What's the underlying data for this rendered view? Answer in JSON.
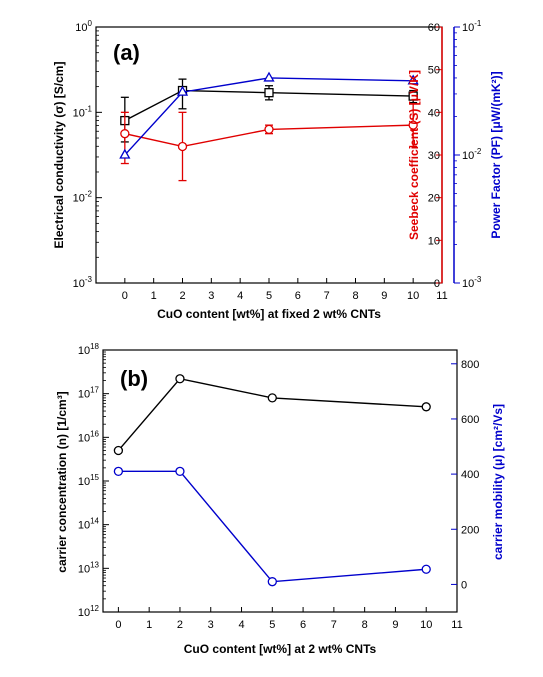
{
  "chart_data": [
    {
      "panel_label": "(a)",
      "type": "line",
      "x": [
        0,
        2,
        5,
        10
      ],
      "xlabel": "CuO content [wt%] at fixed 2 wt% CNTs",
      "xlim": [
        -1,
        11
      ],
      "xticks": [
        "0",
        "1",
        "2",
        "3",
        "4",
        "5",
        "6",
        "7",
        "8",
        "9",
        "10",
        "11"
      ],
      "y_left": {
        "label": "Electrical conductivity (σ) [S/cm]",
        "scale": "log",
        "range": [
          0.001,
          1
        ],
        "color": "#000000",
        "tick_exponents": [
          "-3",
          "-2",
          "-1",
          "0"
        ]
      },
      "y_right_1": {
        "label": "Seebeck coefficient (S) [μV/K]",
        "scale": "linear",
        "range": [
          0,
          60
        ],
        "color": "#e00000",
        "ticks": [
          "0",
          "10",
          "20",
          "30",
          "40",
          "50",
          "60"
        ]
      },
      "y_right_2": {
        "label": "Power Factor (PF) [μW/(mK²)]",
        "scale": "log",
        "range": [
          0.001,
          0.1
        ],
        "color": "#0000cc",
        "tick_exponents": [
          "-3",
          "-2",
          "-1"
        ]
      },
      "series": [
        {
          "axis": "left",
          "color": "#000000",
          "marker": "square",
          "values": [
            0.08,
            0.18,
            0.17,
            0.155
          ],
          "err_low": [
            0.045,
            0.11,
            0.14,
            0.13
          ],
          "err_high": [
            0.15,
            0.245,
            0.205,
            0.18
          ]
        },
        {
          "axis": "right_1",
          "color": "#e00000",
          "marker": "circle",
          "values": [
            35,
            32,
            36,
            37
          ],
          "err_low": [
            28,
            24,
            35,
            32
          ],
          "err_high": [
            40,
            40,
            37,
            42
          ]
        },
        {
          "axis": "right_2",
          "color": "#0000cc",
          "marker": "triangle",
          "values": [
            0.01,
            0.031,
            0.04,
            0.038
          ]
        }
      ]
    },
    {
      "panel_label": "(b)",
      "type": "line",
      "x": [
        0,
        2,
        5,
        10
      ],
      "xlabel": "CuO content [wt%] at 2 wt% CNTs",
      "xlim": [
        -0.5,
        11
      ],
      "xticks": [
        "0",
        "1",
        "2",
        "3",
        "4",
        "5",
        "6",
        "7",
        "8",
        "9",
        "10",
        "11"
      ],
      "y_left": {
        "label": "carrier concentration (n) [1/cm³]",
        "scale": "log",
        "range": [
          1000000000000.0,
          1e+18
        ],
        "color": "#000000",
        "tick_exponents": [
          "12",
          "13",
          "14",
          "15",
          "16",
          "17",
          "18"
        ]
      },
      "y_right": {
        "label": "carrier mobility (μ) [cm²/Vs]",
        "scale": "linear",
        "range": [
          -100,
          850
        ],
        "color": "#0000cc",
        "ticks": [
          "0",
          "200",
          "400",
          "600",
          "800"
        ]
      },
      "series": [
        {
          "axis": "left",
          "color": "#000000",
          "marker": "circle",
          "values": [
            5000000000000000.0,
            2.2e+17,
            8e+16,
            5e+16
          ]
        },
        {
          "axis": "right",
          "color": "#0000cc",
          "marker": "circle",
          "values": [
            410,
            410,
            10,
            55
          ]
        }
      ]
    }
  ]
}
